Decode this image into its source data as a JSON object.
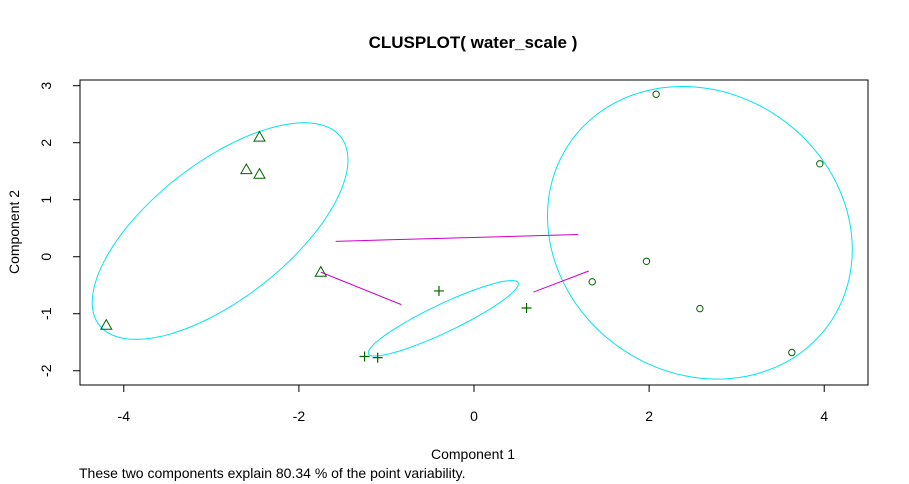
{
  "chart_data": {
    "type": "scatter",
    "title": "CLUSPLOT( water_scale )",
    "xlabel": "Component 1",
    "ylabel": "Component 2",
    "subtitle": "These two components explain 80.34 % of the point variability.",
    "xlim": [
      -4.5,
      4.5
    ],
    "ylim": [
      -2.25,
      3.1
    ],
    "xticks": [
      -4,
      -2,
      0,
      2,
      4
    ],
    "xtick_labels": [
      "-4",
      "-2",
      "0",
      "2",
      "4"
    ],
    "yticks": [
      -2,
      -1,
      0,
      1,
      2,
      3
    ],
    "ytick_labels": [
      "-2",
      "-1",
      "0",
      "1",
      "2",
      "3"
    ],
    "grid": false,
    "colors": {
      "ellipse": "#00e5ee",
      "connector": "#cc00cc",
      "points": "#006400",
      "axis": "#000000"
    },
    "clusters": [
      {
        "marker": "triangle",
        "points": [
          [
            -2.45,
            2.1
          ],
          [
            -2.6,
            1.53
          ],
          [
            -2.45,
            1.45
          ],
          [
            -1.75,
            -0.27
          ],
          [
            -4.2,
            -1.2
          ]
        ],
        "ellipse": {
          "cx": -2.9,
          "cy": 0.45,
          "rx": 2.2,
          "ry": 0.95,
          "angle_deg": 56
        }
      },
      {
        "marker": "plus",
        "points": [
          [
            -0.4,
            -0.6
          ],
          [
            0.6,
            -0.9
          ],
          [
            -1.25,
            -1.75
          ],
          [
            -1.1,
            -1.77
          ]
        ],
        "ellipse": {
          "cx": -0.35,
          "cy": -1.08,
          "rx": 1.06,
          "ry": 0.22,
          "angle_deg": 37
        }
      },
      {
        "marker": "circle",
        "points": [
          [
            2.08,
            2.85
          ],
          [
            3.95,
            1.63
          ],
          [
            1.97,
            -0.08
          ],
          [
            1.35,
            -0.44
          ],
          [
            2.58,
            -0.91
          ],
          [
            3.63,
            -1.68
          ]
        ],
        "ellipse": {
          "cx": 2.58,
          "cy": 0.42,
          "rx": 1.72,
          "ry": 2.58,
          "angle_deg": 8
        }
      }
    ],
    "connectors": [
      {
        "from": [
          -1.58,
          0.27
        ],
        "to": [
          1.19,
          0.39
        ]
      },
      {
        "from": [
          -1.75,
          -0.27
        ],
        "to": [
          -0.83,
          -0.84
        ]
      },
      {
        "from": [
          0.68,
          -0.62
        ],
        "to": [
          1.31,
          -0.25
        ]
      }
    ]
  }
}
